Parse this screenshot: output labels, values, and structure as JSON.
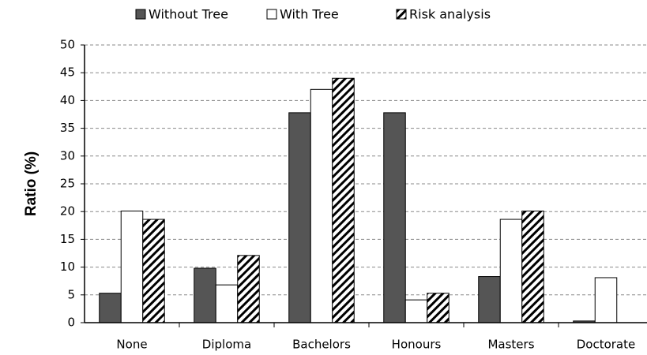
{
  "chart_data": {
    "type": "bar",
    "y_label": "Ratio (%)",
    "categories": [
      "None",
      "Diploma",
      "Bachelors",
      "Honours",
      "Masters",
      "Doctorate"
    ],
    "series": [
      {
        "name": "Without Tree",
        "color": "#555555",
        "values": [
          5.3,
          9.8,
          37.8,
          37.8,
          8.3,
          0.3
        ]
      },
      {
        "name": "With Tree",
        "color": "#ffffff",
        "values": [
          20.1,
          6.8,
          42,
          4.1,
          18.6,
          8.1
        ]
      },
      {
        "name": "Risk analysis",
        "color": "#000000",
        "hatch": true,
        "values": [
          18.6,
          12.1,
          44,
          5.3,
          20.1,
          0
        ]
      }
    ],
    "ylim": [
      0,
      50
    ],
    "yticks": [
      0,
      5,
      10,
      15,
      20,
      25,
      30,
      35,
      40,
      45,
      50
    ],
    "grid": true,
    "legend": "top"
  }
}
